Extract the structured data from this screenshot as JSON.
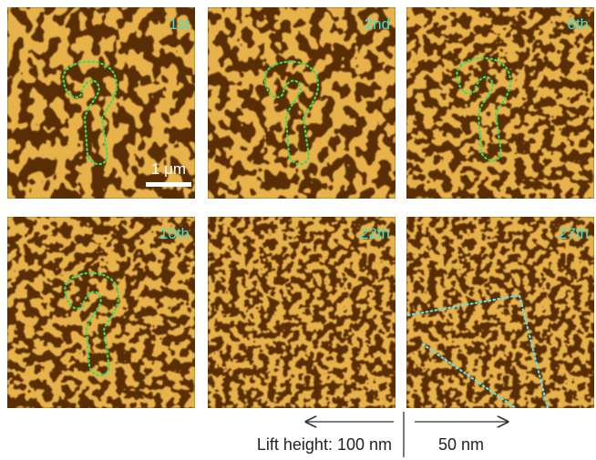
{
  "panels": [
    {
      "label": "1st"
    },
    {
      "label": "2nd"
    },
    {
      "label": "6th"
    },
    {
      "label": "10th"
    },
    {
      "label": "22th"
    },
    {
      "label": "27th"
    }
  ],
  "scale_bar": "1 μm",
  "lift_height": {
    "left": "Lift height: 100 nm",
    "right": "50 nm"
  }
}
